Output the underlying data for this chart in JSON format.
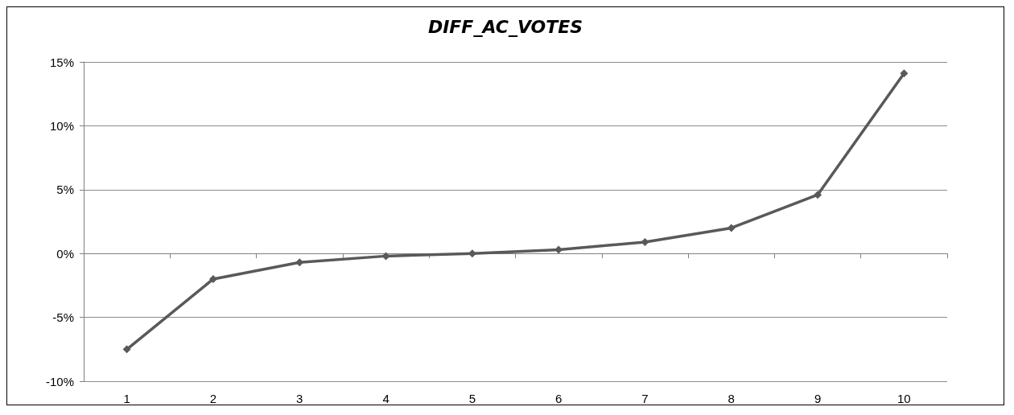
{
  "chart_data": {
    "type": "line",
    "title": "DIFF_AC_VOTES",
    "categories": [
      "1",
      "2",
      "3",
      "4",
      "5",
      "6",
      "7",
      "8",
      "9",
      "10"
    ],
    "series": [
      {
        "color": "#595959",
        "values": [
          -7.5,
          -2.0,
          -0.7,
          -0.2,
          0.0,
          0.3,
          0.9,
          2.0,
          4.6,
          14.1
        ]
      }
    ],
    "ylim": [
      -10,
      15
    ],
    "yticks": [
      {
        "value": -10,
        "label": "-10%"
      },
      {
        "value": -5,
        "label": "-5%"
      },
      {
        "value": 0,
        "label": "0%"
      },
      {
        "value": 5,
        "label": "5%"
      },
      {
        "value": 10,
        "label": "10%"
      },
      {
        "value": 15,
        "label": "15%"
      }
    ],
    "grid": "y",
    "marker": "diamond",
    "line_style": "solid"
  }
}
